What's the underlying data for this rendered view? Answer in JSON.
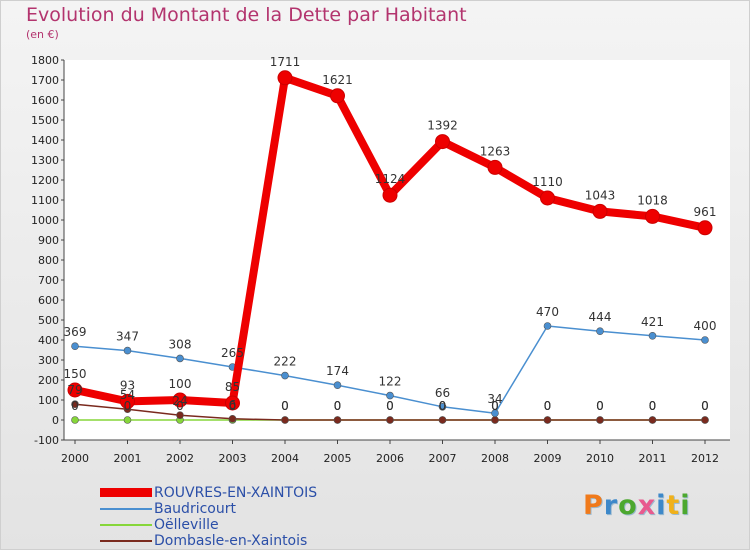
{
  "header": {
    "title": "Evolution du Montant de la Dette par Habitant",
    "subtitle": "(en €)"
  },
  "brand": {
    "text": "Proxiti",
    "colors": [
      "#f07a1b",
      "#3d88c9",
      "#4ca82f",
      "#e85a8e",
      "#3d88c9",
      "#f0b11b",
      "#4ca82f"
    ]
  },
  "chart_data": {
    "type": "line",
    "title": "Evolution du Montant de la Dette par Habitant",
    "subtitle": "(en €)",
    "x": [
      "2000",
      "2001",
      "2002",
      "2003",
      "2004",
      "2005",
      "2006",
      "2007",
      "2008",
      "2009",
      "2010",
      "2011",
      "2012"
    ],
    "ylim": [
      -100,
      1800
    ],
    "yticks": [
      -100,
      0,
      100,
      200,
      300,
      400,
      500,
      600,
      700,
      800,
      900,
      1000,
      1100,
      1200,
      1300,
      1400,
      1500,
      1600,
      1700,
      1800
    ],
    "grid": false,
    "legend_position": "bottom-left",
    "series": [
      {
        "name": "ROUVRES-EN-XAINTOIS",
        "color": "#ee0000",
        "values": [
          150,
          93,
          100,
          85,
          1711,
          1621,
          1124,
          1392,
          1263,
          1110,
          1043,
          1018,
          961
        ],
        "labels": [
          "150",
          "93",
          "100",
          "85",
          "1711",
          "1621",
          "1124",
          "1392",
          "1263",
          "1110",
          "1043",
          "1018",
          "961"
        ]
      },
      {
        "name": "Baudricourt",
        "color": "#4a8fd0",
        "values": [
          369,
          347,
          308,
          265,
          222,
          174,
          122,
          66,
          34,
          470,
          444,
          421,
          400
        ],
        "labels": [
          "369",
          "347",
          "308",
          "265",
          "222",
          "174",
          "122",
          "66",
          "34",
          "470",
          "444",
          "421",
          "400"
        ]
      },
      {
        "name": "Oëlleville",
        "color": "#86d63a",
        "values": [
          0,
          0,
          0,
          0,
          0,
          0,
          0,
          0,
          0,
          0,
          0,
          0,
          0
        ],
        "labels": [
          "0",
          "0",
          "0",
          "0",
          "0",
          "0",
          "0",
          "0",
          "0",
          "0",
          "0",
          "0",
          "0"
        ]
      },
      {
        "name": "Dombasle-en-Xaintois",
        "color": "#7a2a1e",
        "values": [
          79,
          54,
          24,
          6,
          0,
          0,
          0,
          0,
          0,
          0,
          0,
          0,
          0
        ],
        "labels": [
          "79",
          "54",
          "24",
          "6",
          "0",
          "0",
          "0",
          "0",
          "0",
          "0",
          "0",
          "0",
          "0"
        ]
      }
    ]
  }
}
